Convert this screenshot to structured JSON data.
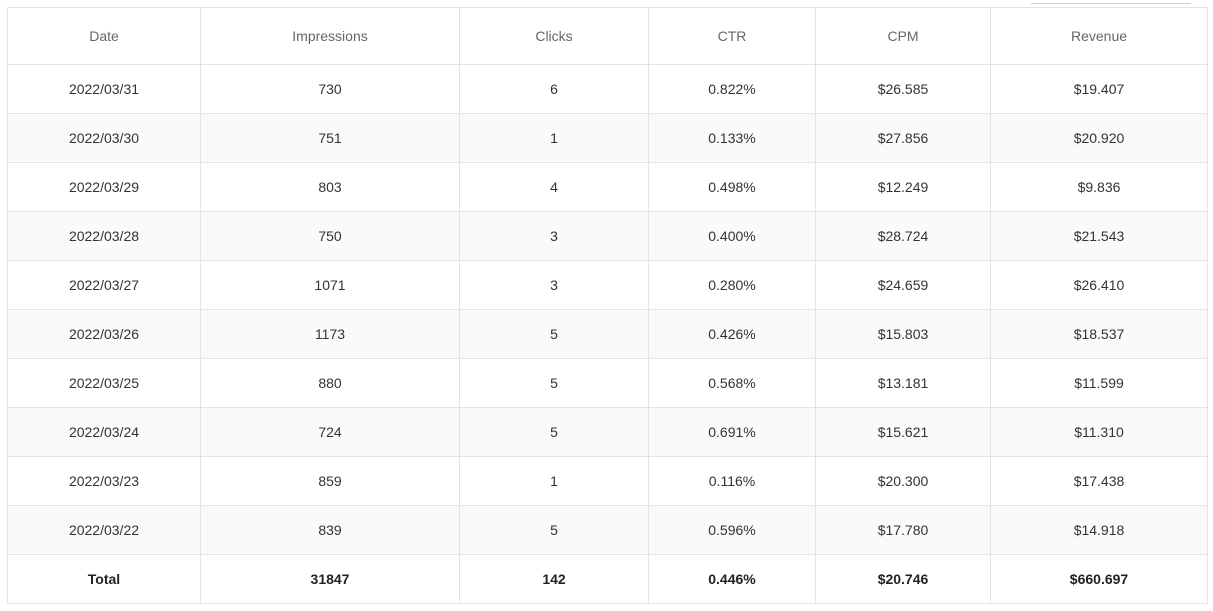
{
  "table": {
    "columns": [
      "Date",
      "Impressions",
      "Clicks",
      "CTR",
      "CPM",
      "Revenue"
    ],
    "rows": [
      [
        "2022/03/31",
        "730",
        "6",
        "0.822%",
        "$26.585",
        "$19.407"
      ],
      [
        "2022/03/30",
        "751",
        "1",
        "0.133%",
        "$27.856",
        "$20.920"
      ],
      [
        "2022/03/29",
        "803",
        "4",
        "0.498%",
        "$12.249",
        "$9.836"
      ],
      [
        "2022/03/28",
        "750",
        "3",
        "0.400%",
        "$28.724",
        "$21.543"
      ],
      [
        "2022/03/27",
        "1071",
        "3",
        "0.280%",
        "$24.659",
        "$26.410"
      ],
      [
        "2022/03/26",
        "1173",
        "5",
        "0.426%",
        "$15.803",
        "$18.537"
      ],
      [
        "2022/03/25",
        "880",
        "5",
        "0.568%",
        "$13.181",
        "$11.599"
      ],
      [
        "2022/03/24",
        "724",
        "5",
        "0.691%",
        "$15.621",
        "$11.310"
      ],
      [
        "2022/03/23",
        "859",
        "1",
        "0.116%",
        "$20.300",
        "$17.438"
      ],
      [
        "2022/03/22",
        "839",
        "5",
        "0.596%",
        "$17.780",
        "$14.918"
      ]
    ],
    "total": [
      "Total",
      "31847",
      "142",
      "0.446%",
      "$20.746",
      "$660.697"
    ]
  }
}
